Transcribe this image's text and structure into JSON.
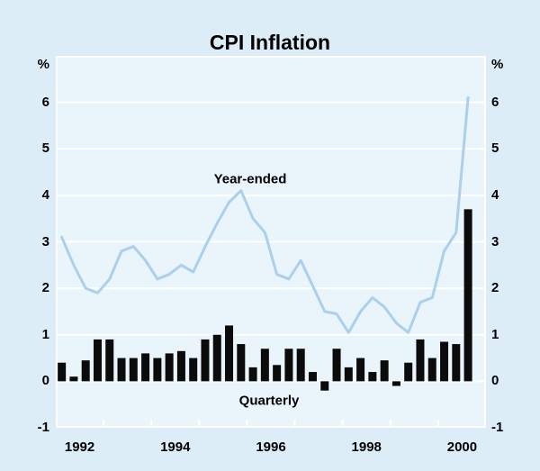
{
  "chart_data": {
    "type": "combo-bar-line",
    "title": "CPI Inflation",
    "unit_label": "%",
    "line_label": "Year-ended",
    "bar_label": "Quarterly",
    "x_tick_labels": [
      "1992",
      "1994",
      "1996",
      "1998",
      "2000"
    ],
    "y_tick_labels": [
      "6",
      "5",
      "4",
      "3",
      "2",
      "1",
      "0",
      "-1"
    ],
    "y_tick_values": [
      6,
      5,
      4,
      3,
      2,
      1,
      0,
      -1
    ],
    "ylim": [
      -1,
      7
    ],
    "x_span_years": 9,
    "start_year": 1992,
    "grid": "horizontal-white",
    "legend_position": "inline-annotations",
    "quarters": [
      "1992Q1",
      "1992Q2",
      "1992Q3",
      "1992Q4",
      "1993Q1",
      "1993Q2",
      "1993Q3",
      "1993Q4",
      "1994Q1",
      "1994Q2",
      "1994Q3",
      "1994Q4",
      "1995Q1",
      "1995Q2",
      "1995Q3",
      "1995Q4",
      "1996Q1",
      "1996Q2",
      "1996Q3",
      "1996Q4",
      "1997Q1",
      "1997Q2",
      "1997Q3",
      "1997Q4",
      "1998Q1",
      "1998Q2",
      "1998Q3",
      "1998Q4",
      "1999Q1",
      "1999Q2",
      "1999Q3",
      "1999Q4",
      "2000Q1",
      "2000Q2",
      "2000Q3"
    ],
    "series": [
      {
        "name": "Year-ended",
        "type": "line",
        "values": [
          3.1,
          2.5,
          2.0,
          1.9,
          2.2,
          2.8,
          2.9,
          2.6,
          2.2,
          2.3,
          2.5,
          2.35,
          2.9,
          3.4,
          3.85,
          4.1,
          3.5,
          3.2,
          2.3,
          2.2,
          2.6,
          2.05,
          1.5,
          1.45,
          1.05,
          1.5,
          1.8,
          1.6,
          1.25,
          1.05,
          1.7,
          1.8,
          2.8,
          3.2,
          6.1
        ]
      },
      {
        "name": "Quarterly",
        "type": "bar",
        "values": [
          0.4,
          0.1,
          0.45,
          0.9,
          0.9,
          0.5,
          0.5,
          0.6,
          0.5,
          0.6,
          0.65,
          0.5,
          0.9,
          1.0,
          1.2,
          0.8,
          0.3,
          0.7,
          0.35,
          0.7,
          0.7,
          0.2,
          -0.2,
          0.7,
          0.3,
          0.5,
          0.2,
          0.45,
          -0.1,
          0.4,
          0.9,
          0.5,
          0.85,
          0.8,
          3.7
        ]
      }
    ],
    "colors": {
      "background_outer": "#ddedf8",
      "background_plot": "#e9f4fb",
      "line": "#abd0eb",
      "bar": "#0b0b0b",
      "grid_and_axes": "#ffffff",
      "text": "#000000"
    }
  }
}
